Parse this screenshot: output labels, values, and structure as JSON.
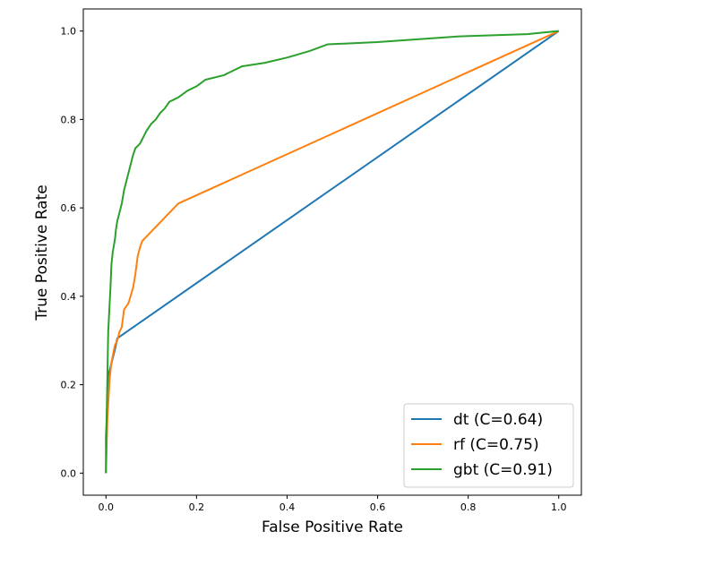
{
  "chart_data": {
    "type": "line",
    "title": "",
    "xlabel": "False Positive Rate",
    "ylabel": "True Positive Rate",
    "xlim": [
      -0.05,
      1.05
    ],
    "ylim": [
      -0.05,
      1.05
    ],
    "xticks": [
      0.0,
      0.2,
      0.4,
      0.6,
      0.8,
      1.0
    ],
    "yticks": [
      0.0,
      0.2,
      0.4,
      0.6,
      0.8,
      1.0
    ],
    "xtick_labels": [
      "0.0",
      "0.2",
      "0.4",
      "0.6",
      "0.8",
      "1.0"
    ],
    "ytick_labels": [
      "0.0",
      "0.2",
      "0.4",
      "0.6",
      "0.8",
      "1.0"
    ],
    "grid": false,
    "legend_position": "lower-right",
    "series": [
      {
        "name": "dt (C=0.64)",
        "color": "#1f77b4",
        "x": [
          0.0,
          0.0,
          0.005,
          0.015,
          0.02,
          0.025,
          1.0
        ],
        "y": [
          0.0,
          0.08,
          0.22,
          0.26,
          0.28,
          0.305,
          1.0
        ]
      },
      {
        "name": "rf (C=0.75)",
        "color": "#ff7f0e",
        "x": [
          0.0,
          0.003,
          0.008,
          0.012,
          0.02,
          0.025,
          0.03,
          0.035,
          0.04,
          0.05,
          0.06,
          0.065,
          0.07,
          0.075,
          0.08,
          0.16,
          1.0
        ],
        "y": [
          0.0,
          0.12,
          0.21,
          0.25,
          0.29,
          0.3,
          0.32,
          0.33,
          0.37,
          0.385,
          0.42,
          0.45,
          0.49,
          0.51,
          0.525,
          0.61,
          1.0
        ]
      },
      {
        "name": "gbt (C=0.91)",
        "color": "#2ca02c",
        "x": [
          0.0,
          0.002,
          0.005,
          0.008,
          0.01,
          0.012,
          0.015,
          0.02,
          0.022,
          0.025,
          0.03,
          0.035,
          0.04,
          0.045,
          0.05,
          0.055,
          0.06,
          0.065,
          0.07,
          0.075,
          0.08,
          0.085,
          0.09,
          0.1,
          0.11,
          0.12,
          0.13,
          0.14,
          0.15,
          0.16,
          0.18,
          0.2,
          0.22,
          0.26,
          0.3,
          0.35,
          0.4,
          0.45,
          0.49,
          0.6,
          0.78,
          0.93,
          1.0
        ],
        "y": [
          0.0,
          0.15,
          0.32,
          0.38,
          0.42,
          0.47,
          0.5,
          0.53,
          0.55,
          0.57,
          0.59,
          0.61,
          0.64,
          0.66,
          0.68,
          0.7,
          0.72,
          0.735,
          0.74,
          0.745,
          0.755,
          0.765,
          0.775,
          0.79,
          0.8,
          0.815,
          0.825,
          0.84,
          0.845,
          0.85,
          0.865,
          0.875,
          0.89,
          0.9,
          0.92,
          0.928,
          0.94,
          0.955,
          0.97,
          0.975,
          0.988,
          0.993,
          1.0
        ]
      }
    ]
  }
}
